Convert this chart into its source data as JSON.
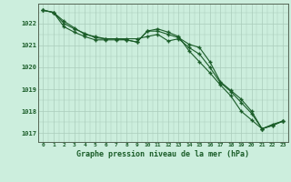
{
  "title": "Graphe pression niveau de la mer (hPa)",
  "background_color": "#cceedd",
  "grid_color": "#aaccbb",
  "line_color": "#1a5c28",
  "xlim": [
    -0.5,
    23.5
  ],
  "ylim": [
    1016.6,
    1022.9
  ],
  "yticks": [
    1017,
    1018,
    1019,
    1020,
    1021,
    1022
  ],
  "xticks": [
    0,
    1,
    2,
    3,
    4,
    5,
    6,
    7,
    8,
    9,
    10,
    11,
    12,
    13,
    14,
    15,
    16,
    17,
    18,
    19,
    20,
    21,
    22,
    23
  ],
  "series1_x": [
    0,
    1,
    2,
    3,
    4,
    5,
    6,
    7,
    8,
    9,
    10,
    11,
    12,
    13,
    14,
    15,
    16,
    17,
    18,
    19,
    20,
    21,
    22,
    23
  ],
  "series1_y": [
    1022.6,
    1022.5,
    1022.1,
    1021.8,
    1021.5,
    1021.4,
    1021.3,
    1021.3,
    1021.3,
    1021.3,
    1021.4,
    1021.5,
    1021.2,
    1021.3,
    1020.9,
    1020.6,
    1020.0,
    1019.3,
    1018.9,
    1018.4,
    1017.9,
    1017.2,
    1017.35,
    1017.55
  ],
  "series2_x": [
    0,
    1,
    2,
    3,
    4,
    5,
    6,
    7,
    8,
    9,
    10,
    11,
    12,
    13,
    14,
    15,
    16,
    17,
    18,
    19,
    20,
    21,
    22,
    23
  ],
  "series2_y": [
    1022.6,
    1022.5,
    1022.0,
    1021.75,
    1021.55,
    1021.35,
    1021.3,
    1021.3,
    1021.25,
    1021.15,
    1021.65,
    1021.65,
    1021.5,
    1021.35,
    1021.05,
    1020.9,
    1020.25,
    1019.35,
    1018.95,
    1018.55,
    1018.0,
    1017.2,
    1017.35,
    1017.55
  ],
  "series3_x": [
    0,
    1,
    2,
    3,
    4,
    5,
    6,
    7,
    8,
    9,
    10,
    11,
    12,
    13,
    14,
    15,
    16,
    17,
    18,
    19,
    20,
    21,
    22,
    23
  ],
  "series3_y": [
    1022.6,
    1022.5,
    1021.85,
    1021.6,
    1021.4,
    1021.25,
    1021.25,
    1021.25,
    1021.25,
    1021.15,
    1021.65,
    1021.75,
    1021.6,
    1021.4,
    1020.75,
    1020.25,
    1019.75,
    1019.2,
    1018.7,
    1018.0,
    1017.6,
    1017.2,
    1017.4,
    1017.55
  ]
}
